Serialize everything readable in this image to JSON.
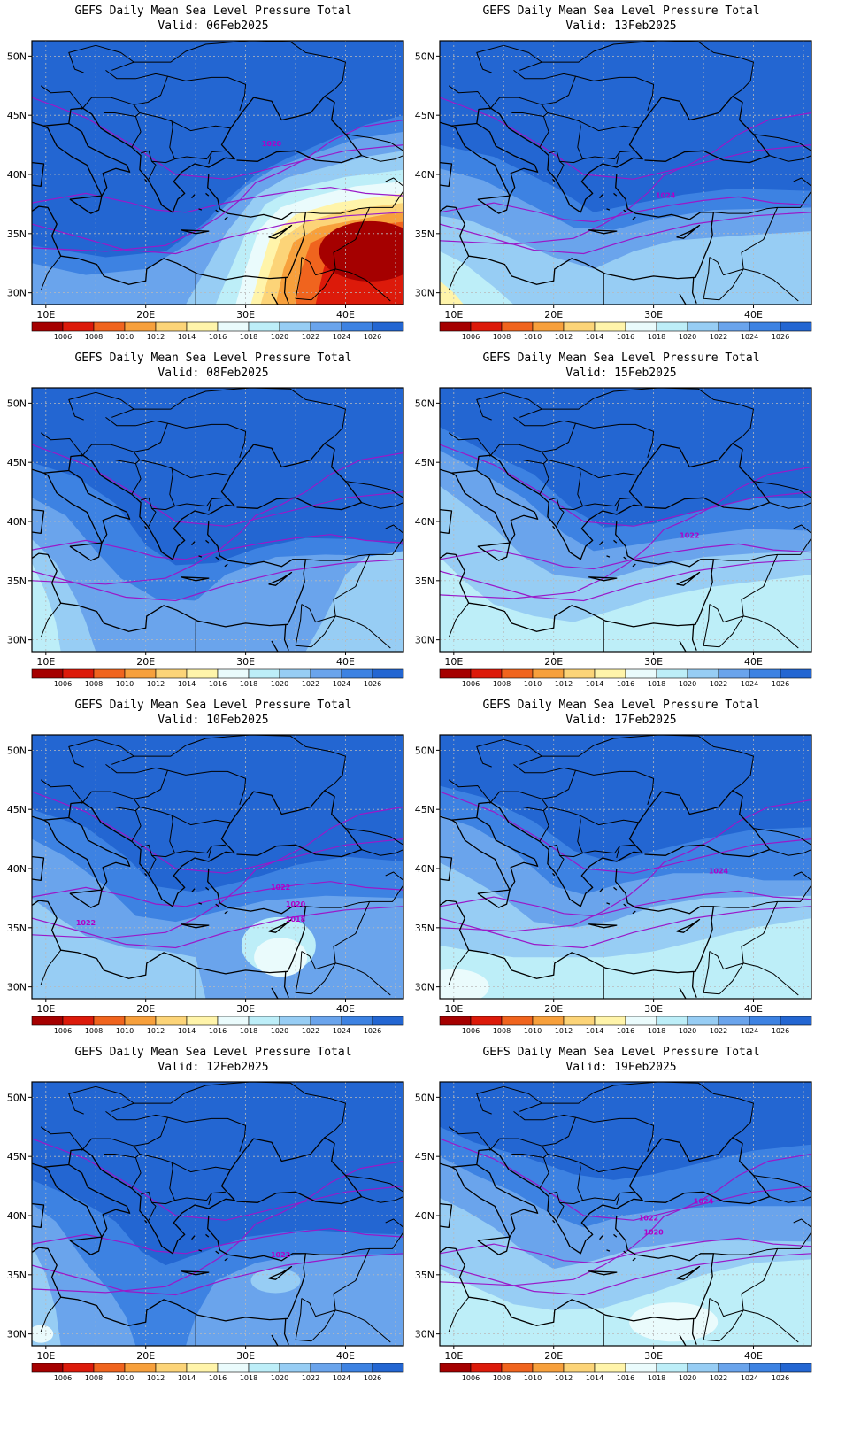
{
  "panels": [
    {
      "title": "GEFS Daily Mean Sea Level Pressure Total",
      "valid": "Valid: 06Feb2025",
      "contour_labels": [
        "1020"
      ]
    },
    {
      "title": "GEFS Daily Mean Sea Level Pressure Total",
      "valid": "Valid: 13Feb2025",
      "contour_labels": [
        "1024"
      ]
    },
    {
      "title": "GEFS Daily Mean Sea Level Pressure Total",
      "valid": "Valid: 08Feb2025",
      "contour_labels": []
    },
    {
      "title": "GEFS Daily Mean Sea Level Pressure Total",
      "valid": "Valid: 15Feb2025",
      "contour_labels": [
        "1022"
      ]
    },
    {
      "title": "GEFS Daily Mean Sea Level Pressure Total",
      "valid": "Valid: 10Feb2025",
      "contour_labels": [
        "1022",
        "1020",
        "1018",
        "1022"
      ]
    },
    {
      "title": "GEFS Daily Mean Sea Level Pressure Total",
      "valid": "Valid: 17Feb2025",
      "contour_labels": [
        "1024"
      ]
    },
    {
      "title": "GEFS Daily Mean Sea Level Pressure Total",
      "valid": "Valid: 12Feb2025",
      "contour_labels": [
        "1022"
      ]
    },
    {
      "title": "GEFS Daily Mean Sea Level Pressure Total",
      "valid": "Valid: 19Feb2025",
      "contour_labels": [
        "1024",
        "1022",
        "1020"
      ]
    }
  ],
  "lat_ticks": [
    "50N",
    "45N",
    "40N",
    "35N",
    "30N"
  ],
  "lon_ticks": [
    "10E",
    "20E",
    "30E",
    "40E"
  ],
  "colorbar": {
    "levels": [
      "1006",
      "1008",
      "1010",
      "1012",
      "1014",
      "1016",
      "1018",
      "1020",
      "1022",
      "1024",
      "1026"
    ],
    "colors": [
      "#a50000",
      "#dc1a0a",
      "#f0641e",
      "#f7a03c",
      "#fcd478",
      "#fff4aa",
      "#eafbfc",
      "#bdeef8",
      "#97cdf4",
      "#6aa4ec",
      "#3d82e2",
      "#2366d2"
    ]
  },
  "colors": {
    "contour": "#9a19c8",
    "coast": "#000000",
    "grid": "#b9b9b9"
  }
}
